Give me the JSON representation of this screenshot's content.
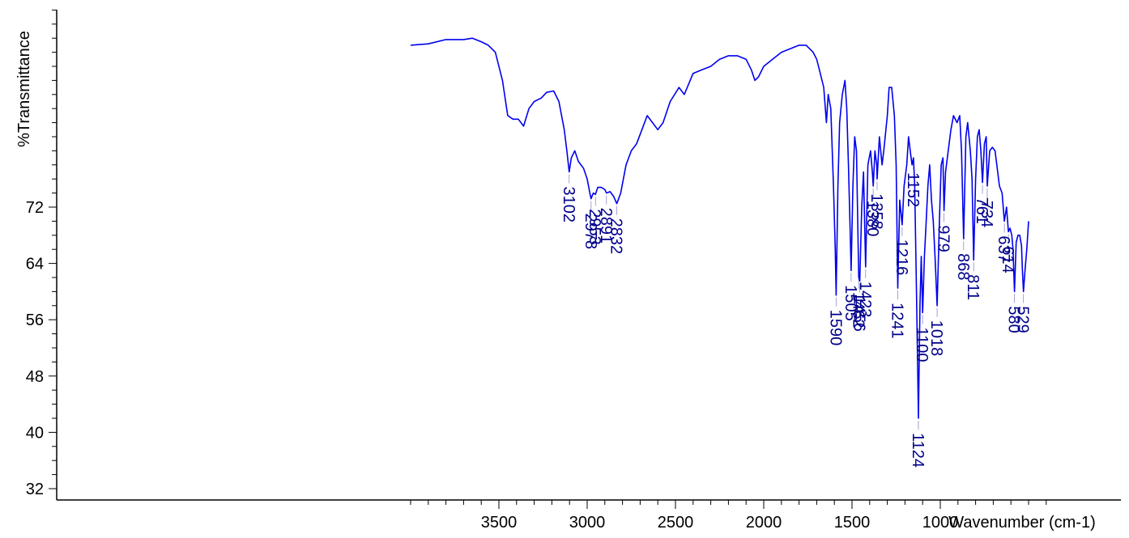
{
  "chart_data": {
    "type": "line",
    "ylabel": "%Transmittance",
    "xlabel": "Wavenumber (cm-1)",
    "xlim": [
      4000,
      400
    ],
    "ylim": [
      30,
      100
    ],
    "x_ticks": [
      3500,
      3000,
      2500,
      2000,
      1500,
      1000
    ],
    "x_tick_labels": [
      "3500",
      "3000",
      "2500",
      "2000",
      "1500",
      "1000"
    ],
    "y_ticks": [
      32,
      40,
      48,
      56,
      64,
      72
    ],
    "y_tick_labels": [
      "32",
      "40",
      "48",
      "56",
      "64",
      "72"
    ],
    "grid": false,
    "series": [
      {
        "color": "#0000ee",
        "points": [
          [
            4000,
            95.0
          ],
          [
            3900,
            95.2
          ],
          [
            3800,
            95.8
          ],
          [
            3700,
            95.8
          ],
          [
            3650,
            96.0
          ],
          [
            3600,
            95.5
          ],
          [
            3560,
            95.0
          ],
          [
            3520,
            94.0
          ],
          [
            3480,
            90.0
          ],
          [
            3450,
            85.0
          ],
          [
            3420,
            84.5
          ],
          [
            3390,
            84.5
          ],
          [
            3360,
            83.5
          ],
          [
            3330,
            86.0
          ],
          [
            3300,
            87.0
          ],
          [
            3260,
            87.5
          ],
          [
            3230,
            88.3
          ],
          [
            3190,
            88.5
          ],
          [
            3160,
            87.0
          ],
          [
            3130,
            83.0
          ],
          [
            3115,
            80.0
          ],
          [
            3102,
            77.0
          ],
          [
            3090,
            79.0
          ],
          [
            3070,
            80.0
          ],
          [
            3050,
            78.5
          ],
          [
            3020,
            77.5
          ],
          [
            3000,
            76.0
          ],
          [
            2985,
            74.0
          ],
          [
            2978,
            73.2
          ],
          [
            2965,
            74.0
          ],
          [
            2953,
            73.8
          ],
          [
            2940,
            74.8
          ],
          [
            2920,
            74.8
          ],
          [
            2900,
            74.5
          ],
          [
            2891,
            74.0
          ],
          [
            2870,
            74.2
          ],
          [
            2850,
            73.5
          ],
          [
            2832,
            72.5
          ],
          [
            2810,
            74.0
          ],
          [
            2780,
            78.0
          ],
          [
            2750,
            80.0
          ],
          [
            2720,
            81.0
          ],
          [
            2690,
            83.0
          ],
          [
            2660,
            85.0
          ],
          [
            2630,
            84.0
          ],
          [
            2600,
            83.0
          ],
          [
            2570,
            84.0
          ],
          [
            2530,
            87.0
          ],
          [
            2480,
            89.0
          ],
          [
            2450,
            88.0
          ],
          [
            2400,
            91.0
          ],
          [
            2350,
            91.5
          ],
          [
            2300,
            92.0
          ],
          [
            2250,
            93.0
          ],
          [
            2200,
            93.5
          ],
          [
            2150,
            93.5
          ],
          [
            2100,
            93.0
          ],
          [
            2070,
            91.5
          ],
          [
            2050,
            90.0
          ],
          [
            2030,
            90.5
          ],
          [
            2000,
            92.0
          ],
          [
            1950,
            93.0
          ],
          [
            1900,
            94.0
          ],
          [
            1850,
            94.5
          ],
          [
            1800,
            95.0
          ],
          [
            1760,
            95.0
          ],
          [
            1720,
            94.0
          ],
          [
            1700,
            93.0
          ],
          [
            1680,
            91.0
          ],
          [
            1660,
            89.0
          ],
          [
            1645,
            84.0
          ],
          [
            1635,
            88.0
          ],
          [
            1620,
            86.0
          ],
          [
            1605,
            75.0
          ],
          [
            1595,
            66.0
          ],
          [
            1590,
            59.5
          ],
          [
            1580,
            75.0
          ],
          [
            1570,
            84.0
          ],
          [
            1555,
            88.0
          ],
          [
            1540,
            90.0
          ],
          [
            1530,
            86.0
          ],
          [
            1520,
            78.0
          ],
          [
            1512,
            70.0
          ],
          [
            1505,
            63.0
          ],
          [
            1495,
            75.0
          ],
          [
            1485,
            82.0
          ],
          [
            1475,
            80.0
          ],
          [
            1462,
            62.0
          ],
          [
            1456,
            61.5
          ],
          [
            1445,
            72.0
          ],
          [
            1435,
            77.0
          ],
          [
            1423,
            63.5
          ],
          [
            1410,
            78.0
          ],
          [
            1395,
            80.0
          ],
          [
            1385,
            77.0
          ],
          [
            1380,
            75.0
          ],
          [
            1370,
            80.0
          ],
          [
            1360,
            78.0
          ],
          [
            1358,
            76.0
          ],
          [
            1345,
            82.0
          ],
          [
            1330,
            78.0
          ],
          [
            1320,
            80.0
          ],
          [
            1300,
            85.0
          ],
          [
            1290,
            89.0
          ],
          [
            1275,
            89.0
          ],
          [
            1260,
            85.0
          ],
          [
            1250,
            78.0
          ],
          [
            1241,
            60.5
          ],
          [
            1230,
            73.0
          ],
          [
            1216,
            69.5
          ],
          [
            1205,
            75.0
          ],
          [
            1190,
            78.0
          ],
          [
            1180,
            82.0
          ],
          [
            1170,
            80.0
          ],
          [
            1160,
            78.0
          ],
          [
            1152,
            79.0
          ],
          [
            1145,
            75.0
          ],
          [
            1135,
            60.0
          ],
          [
            1124,
            42.0
          ],
          [
            1115,
            58.0
          ],
          [
            1108,
            65.0
          ],
          [
            1100,
            57.0
          ],
          [
            1090,
            65.0
          ],
          [
            1080,
            70.0
          ],
          [
            1070,
            75.0
          ],
          [
            1060,
            78.0
          ],
          [
            1050,
            73.0
          ],
          [
            1040,
            70.0
          ],
          [
            1030,
            65.0
          ],
          [
            1018,
            58.0
          ],
          [
            1005,
            70.0
          ],
          [
            995,
            78.0
          ],
          [
            985,
            79.0
          ],
          [
            979,
            71.5
          ],
          [
            970,
            77.0
          ],
          [
            955,
            80.0
          ],
          [
            940,
            83.0
          ],
          [
            925,
            85.0
          ],
          [
            905,
            84.0
          ],
          [
            890,
            85.0
          ],
          [
            880,
            80.0
          ],
          [
            868,
            67.5
          ],
          [
            855,
            82.0
          ],
          [
            845,
            84.0
          ],
          [
            830,
            80.0
          ],
          [
            820,
            76.0
          ],
          [
            811,
            64.5
          ],
          [
            800,
            76.0
          ],
          [
            790,
            82.0
          ],
          [
            780,
            83.0
          ],
          [
            770,
            80.0
          ],
          [
            761,
            75.5
          ],
          [
            750,
            81.0
          ],
          [
            740,
            82.0
          ],
          [
            734,
            75.0
          ],
          [
            720,
            80.0
          ],
          [
            705,
            80.5
          ],
          [
            690,
            80.0
          ],
          [
            680,
            78.0
          ],
          [
            665,
            75.0
          ],
          [
            650,
            74.0
          ],
          [
            637,
            70.0
          ],
          [
            625,
            72.0
          ],
          [
            614,
            68.5
          ],
          [
            605,
            69.0
          ],
          [
            595,
            68.0
          ],
          [
            588,
            66.0
          ],
          [
            580,
            60.0
          ],
          [
            570,
            67.0
          ],
          [
            560,
            68.0
          ],
          [
            550,
            68.0
          ],
          [
            540,
            66.5
          ],
          [
            535,
            63.0
          ],
          [
            529,
            60.0
          ],
          [
            520,
            63.0
          ],
          [
            510,
            66.0
          ],
          [
            500,
            70.0
          ]
        ]
      }
    ],
    "annotations": [
      {
        "x": 3102,
        "y": 77.0,
        "label": "3102"
      },
      {
        "x": 2978,
        "y": 73.2,
        "label": "2978"
      },
      {
        "x": 2953,
        "y": 73.8,
        "label": "2953"
      },
      {
        "x": 2891,
        "y": 74.0,
        "label": "2891"
      },
      {
        "x": 2832,
        "y": 72.5,
        "label": "2832"
      },
      {
        "x": 1590,
        "y": 59.5,
        "label": "1590"
      },
      {
        "x": 1505,
        "y": 63.0,
        "label": "1505"
      },
      {
        "x": 1462,
        "y": 62.0,
        "label": "1462"
      },
      {
        "x": 1456,
        "y": 61.5,
        "label": "1456"
      },
      {
        "x": 1423,
        "y": 63.5,
        "label": "1423"
      },
      {
        "x": 1380,
        "y": 75.0,
        "label": "1380"
      },
      {
        "x": 1358,
        "y": 76.0,
        "label": "1358"
      },
      {
        "x": 1241,
        "y": 60.5,
        "label": "1241"
      },
      {
        "x": 1216,
        "y": 69.5,
        "label": "1216"
      },
      {
        "x": 1152,
        "y": 79.0,
        "label": "1152"
      },
      {
        "x": 1124,
        "y": 42.0,
        "label": "1124"
      },
      {
        "x": 1100,
        "y": 57.0,
        "label": "1100"
      },
      {
        "x": 1018,
        "y": 58.0,
        "label": "1018"
      },
      {
        "x": 979,
        "y": 71.5,
        "label": "979"
      },
      {
        "x": 868,
        "y": 67.5,
        "label": "868"
      },
      {
        "x": 811,
        "y": 64.5,
        "label": "811"
      },
      {
        "x": 761,
        "y": 75.5,
        "label": "761"
      },
      {
        "x": 734,
        "y": 75.0,
        "label": "734"
      },
      {
        "x": 637,
        "y": 70.0,
        "label": "637"
      },
      {
        "x": 614,
        "y": 68.5,
        "label": "614"
      },
      {
        "x": 580,
        "y": 60.0,
        "label": "580"
      },
      {
        "x": 529,
        "y": 60.0,
        "label": "529"
      }
    ]
  }
}
